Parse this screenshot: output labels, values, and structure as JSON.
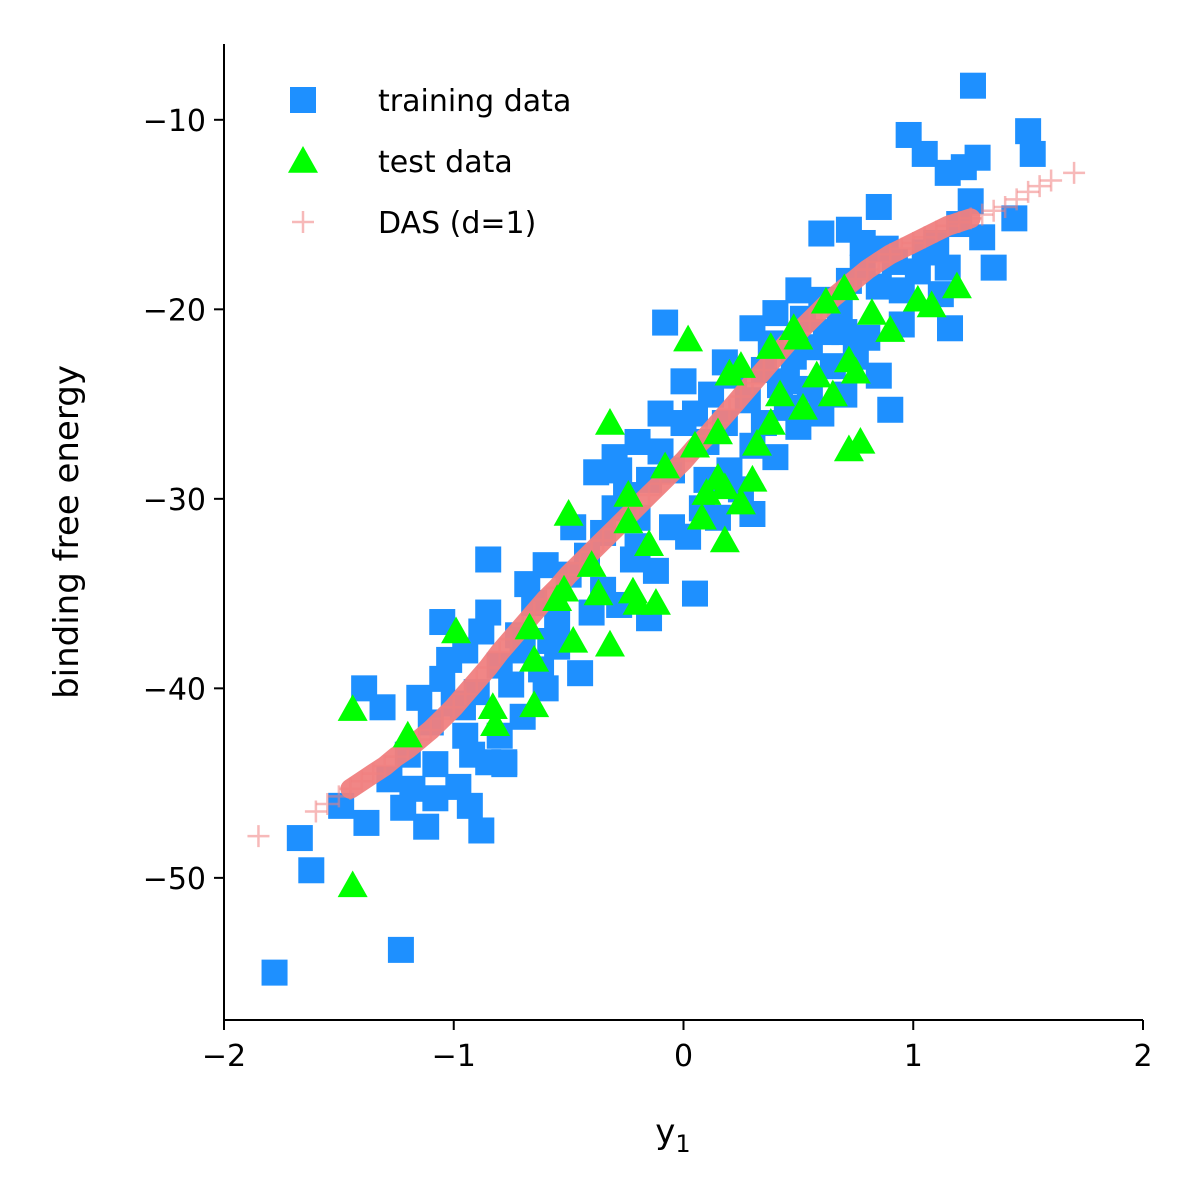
{
  "chart_data": {
    "type": "scatter",
    "title": "",
    "xlabel": "y",
    "xlabel_sub": "1",
    "ylabel": "binding free energy",
    "xlim": [
      -2,
      2
    ],
    "ylim": [
      -57.5,
      -6
    ],
    "xticks": [
      -2,
      -1,
      0,
      1,
      2
    ],
    "xtick_labels": [
      "−2",
      "−1",
      "0",
      "1",
      "2"
    ],
    "yticks": [
      -10,
      -20,
      -30,
      -40,
      -50
    ],
    "ytick_labels": [
      "−10",
      "−20",
      "−30",
      "−40",
      "−50"
    ],
    "grid": false,
    "legend_position": "top-left",
    "series": [
      {
        "name": "training data",
        "marker": "square",
        "color": "#1e90ff",
        "points": [
          [
            -1.78,
            -55.0
          ],
          [
            -1.23,
            -53.8
          ],
          [
            -1.67,
            -47.9
          ],
          [
            -1.62,
            -49.6
          ],
          [
            -1.38,
            -47.1
          ],
          [
            -1.12,
            -47.3
          ],
          [
            -0.88,
            -47.5
          ],
          [
            -1.49,
            -46.2
          ],
          [
            -1.39,
            -40.0
          ],
          [
            -1.31,
            -41.0
          ],
          [
            -1.05,
            -36.5
          ],
          [
            -1.18,
            -45.3
          ],
          [
            -1.08,
            -44.0
          ],
          [
            -0.98,
            -45.2
          ],
          [
            -0.92,
            -43.5
          ],
          [
            -0.85,
            -43.9
          ],
          [
            -1.1,
            -41.8
          ],
          [
            -1.0,
            -40.8
          ],
          [
            -0.9,
            -40.2
          ],
          [
            -0.8,
            -38.8
          ],
          [
            -0.75,
            -39.8
          ],
          [
            -0.7,
            -41.5
          ],
          [
            -0.6,
            -40.0
          ],
          [
            -0.95,
            -42.5
          ],
          [
            -0.85,
            -36.0
          ],
          [
            -0.72,
            -37.2
          ],
          [
            -0.65,
            -35.5
          ],
          [
            -0.55,
            -36.5
          ],
          [
            -0.6,
            -33.5
          ],
          [
            -0.5,
            -34.0
          ],
          [
            -0.48,
            -31.5
          ],
          [
            -0.42,
            -33.0
          ],
          [
            -0.35,
            -31.8
          ],
          [
            -0.3,
            -30.5
          ],
          [
            -0.38,
            -28.6
          ],
          [
            -0.3,
            -27.8
          ],
          [
            -0.25,
            -29.8
          ],
          [
            -0.2,
            -32.5
          ],
          [
            -0.15,
            -29.0
          ],
          [
            -0.1,
            -27.5
          ],
          [
            -0.05,
            -28.5
          ],
          [
            0.0,
            -26.0
          ],
          [
            0.05,
            -25.5
          ],
          [
            0.1,
            -27.0
          ],
          [
            0.12,
            -24.5
          ],
          [
            0.18,
            -26.0
          ],
          [
            0.22,
            -23.5
          ],
          [
            0.28,
            -24.8
          ],
          [
            0.35,
            -23.2
          ],
          [
            0.38,
            -21.8
          ],
          [
            0.42,
            -24.0
          ],
          [
            0.48,
            -22.5
          ],
          [
            0.52,
            -20.5
          ],
          [
            0.55,
            -22.0
          ],
          [
            0.6,
            -19.5
          ],
          [
            0.62,
            -21.2
          ],
          [
            0.68,
            -20.0
          ],
          [
            0.72,
            -18.5
          ],
          [
            0.78,
            -17.8
          ],
          [
            0.85,
            -18.8
          ],
          [
            0.88,
            -16.8
          ],
          [
            0.92,
            -17.5
          ],
          [
            0.95,
            -19.0
          ],
          [
            1.02,
            -18.0
          ],
          [
            1.05,
            -17.0
          ],
          [
            1.1,
            -16.5
          ],
          [
            1.15,
            -17.8
          ],
          [
            1.2,
            -15.5
          ],
          [
            1.25,
            -14.3
          ],
          [
            1.3,
            -16.2
          ],
          [
            1.35,
            -17.8
          ],
          [
            1.28,
            -12.0
          ],
          [
            1.15,
            -12.8
          ],
          [
            1.05,
            -11.8
          ],
          [
            0.98,
            -10.8
          ],
          [
            1.22,
            -12.5
          ],
          [
            1.26,
            -8.2
          ],
          [
            1.5,
            -10.6
          ],
          [
            1.52,
            -11.8
          ],
          [
            1.44,
            -15.2
          ],
          [
            0.85,
            -14.6
          ],
          [
            0.6,
            -16.0
          ],
          [
            0.72,
            -15.8
          ],
          [
            0.78,
            -16.5
          ],
          [
            -0.08,
            -20.7
          ],
          [
            0.9,
            -25.3
          ],
          [
            1.16,
            -21.0
          ],
          [
            0.3,
            -30.8
          ],
          [
            0.05,
            -35.0
          ],
          [
            -0.15,
            -36.3
          ],
          [
            -0.45,
            -39.2
          ],
          [
            -0.62,
            -39.0
          ],
          [
            -0.85,
            -33.2
          ],
          [
            -0.8,
            -42.5
          ],
          [
            -0.78,
            -43.9
          ],
          [
            -1.02,
            -38.5
          ],
          [
            -0.95,
            -38.0
          ],
          [
            -0.88,
            -37.0
          ],
          [
            -0.7,
            -38.0
          ],
          [
            -0.68,
            -34.5
          ],
          [
            -0.58,
            -37.5
          ],
          [
            -0.4,
            -36.0
          ],
          [
            -0.35,
            -34.8
          ],
          [
            -0.28,
            -35.6
          ],
          [
            -0.22,
            -33.2
          ],
          [
            -0.12,
            -33.8
          ],
          [
            -0.05,
            -31.5
          ],
          [
            0.02,
            -32.0
          ],
          [
            0.08,
            -30.5
          ],
          [
            0.15,
            -31.0
          ],
          [
            0.2,
            -28.5
          ],
          [
            0.25,
            -29.5
          ],
          [
            0.3,
            -27.2
          ],
          [
            0.35,
            -26.0
          ],
          [
            0.4,
            -27.8
          ],
          [
            0.45,
            -25.2
          ],
          [
            0.5,
            -26.2
          ],
          [
            0.55,
            -24.2
          ],
          [
            0.6,
            -25.5
          ],
          [
            0.65,
            -23.0
          ],
          [
            0.7,
            -24.5
          ],
          [
            0.75,
            -22.5
          ],
          [
            0.8,
            -21.5
          ],
          [
            0.85,
            -23.5
          ],
          [
            -0.2,
            -27.0
          ],
          [
            -0.28,
            -28.5
          ],
          [
            -0.1,
            -25.5
          ],
          [
            0.0,
            -23.8
          ],
          [
            0.18,
            -22.8
          ],
          [
            0.3,
            -21.0
          ],
          [
            0.4,
            -20.2
          ],
          [
            0.5,
            -19.0
          ],
          [
            -1.2,
            -43.5
          ],
          [
            -1.15,
            -40.5
          ],
          [
            -1.05,
            -39.5
          ],
          [
            -0.96,
            -41.0
          ],
          [
            -1.28,
            -44.8
          ],
          [
            -1.22,
            -46.3
          ],
          [
            -1.08,
            -45.8
          ],
          [
            -0.93,
            -46.2
          ],
          [
            -0.78,
            -44.0
          ],
          [
            -0.55,
            -37.8
          ],
          [
            -0.2,
            -31.0
          ],
          [
            0.1,
            -29.0
          ],
          [
            0.45,
            -23.8
          ],
          [
            0.7,
            -21.2
          ],
          [
            0.95,
            -20.8
          ],
          [
            1.12,
            -19.2
          ]
        ]
      },
      {
        "name": "test data",
        "marker": "triangle",
        "color": "#00ff00",
        "points": [
          [
            -1.44,
            -50.4
          ],
          [
            -1.44,
            -41.1
          ],
          [
            -1.2,
            -42.5
          ],
          [
            -0.99,
            -37.0
          ],
          [
            -0.83,
            -41.0
          ],
          [
            -0.82,
            -41.9
          ],
          [
            -0.65,
            -40.9
          ],
          [
            -0.67,
            -36.8
          ],
          [
            -0.65,
            -38.5
          ],
          [
            -0.52,
            -34.8
          ],
          [
            -0.48,
            -37.5
          ],
          [
            -0.5,
            -30.8
          ],
          [
            -0.37,
            -35.0
          ],
          [
            -0.32,
            -37.7
          ],
          [
            -0.32,
            -26.0
          ],
          [
            -0.24,
            -29.8
          ],
          [
            -0.24,
            -31.2
          ],
          [
            -0.22,
            -34.9
          ],
          [
            -0.2,
            -35.5
          ],
          [
            -0.15,
            -32.4
          ],
          [
            -0.12,
            -35.5
          ],
          [
            -0.08,
            -28.3
          ],
          [
            0.02,
            -21.6
          ],
          [
            0.05,
            -27.2
          ],
          [
            0.1,
            -29.7
          ],
          [
            0.15,
            -26.5
          ],
          [
            0.15,
            -28.9
          ],
          [
            0.18,
            -29.4
          ],
          [
            0.18,
            -32.2
          ],
          [
            0.2,
            -23.4
          ],
          [
            0.25,
            -30.2
          ],
          [
            0.25,
            -23.0
          ],
          [
            0.3,
            -29.0
          ],
          [
            0.32,
            -27.1
          ],
          [
            0.38,
            -22.0
          ],
          [
            0.38,
            -26.0
          ],
          [
            0.42,
            -24.5
          ],
          [
            0.48,
            -21.0
          ],
          [
            0.5,
            -21.5
          ],
          [
            0.52,
            -25.2
          ],
          [
            0.58,
            -23.5
          ],
          [
            0.62,
            -19.6
          ],
          [
            0.65,
            -24.5
          ],
          [
            0.7,
            -18.9
          ],
          [
            0.72,
            -22.7
          ],
          [
            0.75,
            -23.3
          ],
          [
            0.72,
            -27.4
          ],
          [
            0.77,
            -27.0
          ],
          [
            0.82,
            -20.2
          ],
          [
            0.9,
            -21.1
          ],
          [
            1.02,
            -19.5
          ],
          [
            1.08,
            -19.8
          ],
          [
            1.19,
            -18.8
          ],
          [
            -0.55,
            -35.3
          ],
          [
            0.08,
            -31.0
          ],
          [
            -0.4,
            -33.5
          ]
        ]
      },
      {
        "name": "DAS (d=1)",
        "marker": "plus",
        "color": "#f08080",
        "points": [
          [
            -1.85,
            -47.8
          ],
          [
            -1.6,
            -46.5
          ],
          [
            -1.55,
            -46.1
          ],
          [
            -1.5,
            -45.7
          ],
          [
            -1.45,
            -45.3
          ],
          [
            -1.4,
            -44.9
          ],
          [
            -1.35,
            -44.5
          ],
          [
            -1.3,
            -44.1
          ],
          [
            -1.25,
            -43.6
          ],
          [
            -1.2,
            -43.2
          ],
          [
            -1.15,
            -42.7
          ],
          [
            -1.1,
            -42.2
          ],
          [
            -1.05,
            -41.6
          ],
          [
            -1.0,
            -41.0
          ],
          [
            -0.95,
            -40.3
          ],
          [
            -0.9,
            -39.6
          ],
          [
            -0.85,
            -38.9
          ],
          [
            -0.8,
            -38.1
          ],
          [
            -0.75,
            -37.4
          ],
          [
            -0.7,
            -36.7
          ],
          [
            -0.65,
            -36.0
          ],
          [
            -0.6,
            -35.3
          ],
          [
            -0.55,
            -34.7
          ],
          [
            -0.5,
            -34.0
          ],
          [
            -0.45,
            -33.4
          ],
          [
            -0.4,
            -32.8
          ],
          [
            -0.35,
            -32.2
          ],
          [
            -0.3,
            -31.6
          ],
          [
            -0.25,
            -31.0
          ],
          [
            -0.2,
            -30.4
          ],
          [
            -0.15,
            -29.8
          ],
          [
            -0.1,
            -29.2
          ],
          [
            -0.05,
            -28.6
          ],
          [
            0.0,
            -28.0
          ],
          [
            0.05,
            -27.3
          ],
          [
            0.1,
            -26.7
          ],
          [
            0.15,
            -26.0
          ],
          [
            0.2,
            -25.3
          ],
          [
            0.25,
            -24.6
          ],
          [
            0.3,
            -23.9
          ],
          [
            0.35,
            -23.2
          ],
          [
            0.4,
            -22.5
          ],
          [
            0.45,
            -21.8
          ],
          [
            0.5,
            -21.2
          ],
          [
            0.55,
            -20.6
          ],
          [
            0.6,
            -20.0
          ],
          [
            0.65,
            -19.4
          ],
          [
            0.7,
            -18.9
          ],
          [
            0.75,
            -18.4
          ],
          [
            0.8,
            -17.9
          ],
          [
            0.85,
            -17.5
          ],
          [
            0.9,
            -17.1
          ],
          [
            0.95,
            -16.8
          ],
          [
            1.0,
            -16.5
          ],
          [
            1.05,
            -16.2
          ],
          [
            1.1,
            -15.9
          ],
          [
            1.15,
            -15.6
          ],
          [
            1.2,
            -15.4
          ],
          [
            1.25,
            -15.2
          ],
          [
            1.3,
            -15.0
          ],
          [
            1.35,
            -14.8
          ],
          [
            1.4,
            -14.6
          ],
          [
            1.45,
            -14.2
          ],
          [
            1.5,
            -13.8
          ],
          [
            1.55,
            -13.5
          ],
          [
            1.6,
            -13.2
          ],
          [
            1.7,
            -12.8
          ]
        ]
      }
    ]
  }
}
